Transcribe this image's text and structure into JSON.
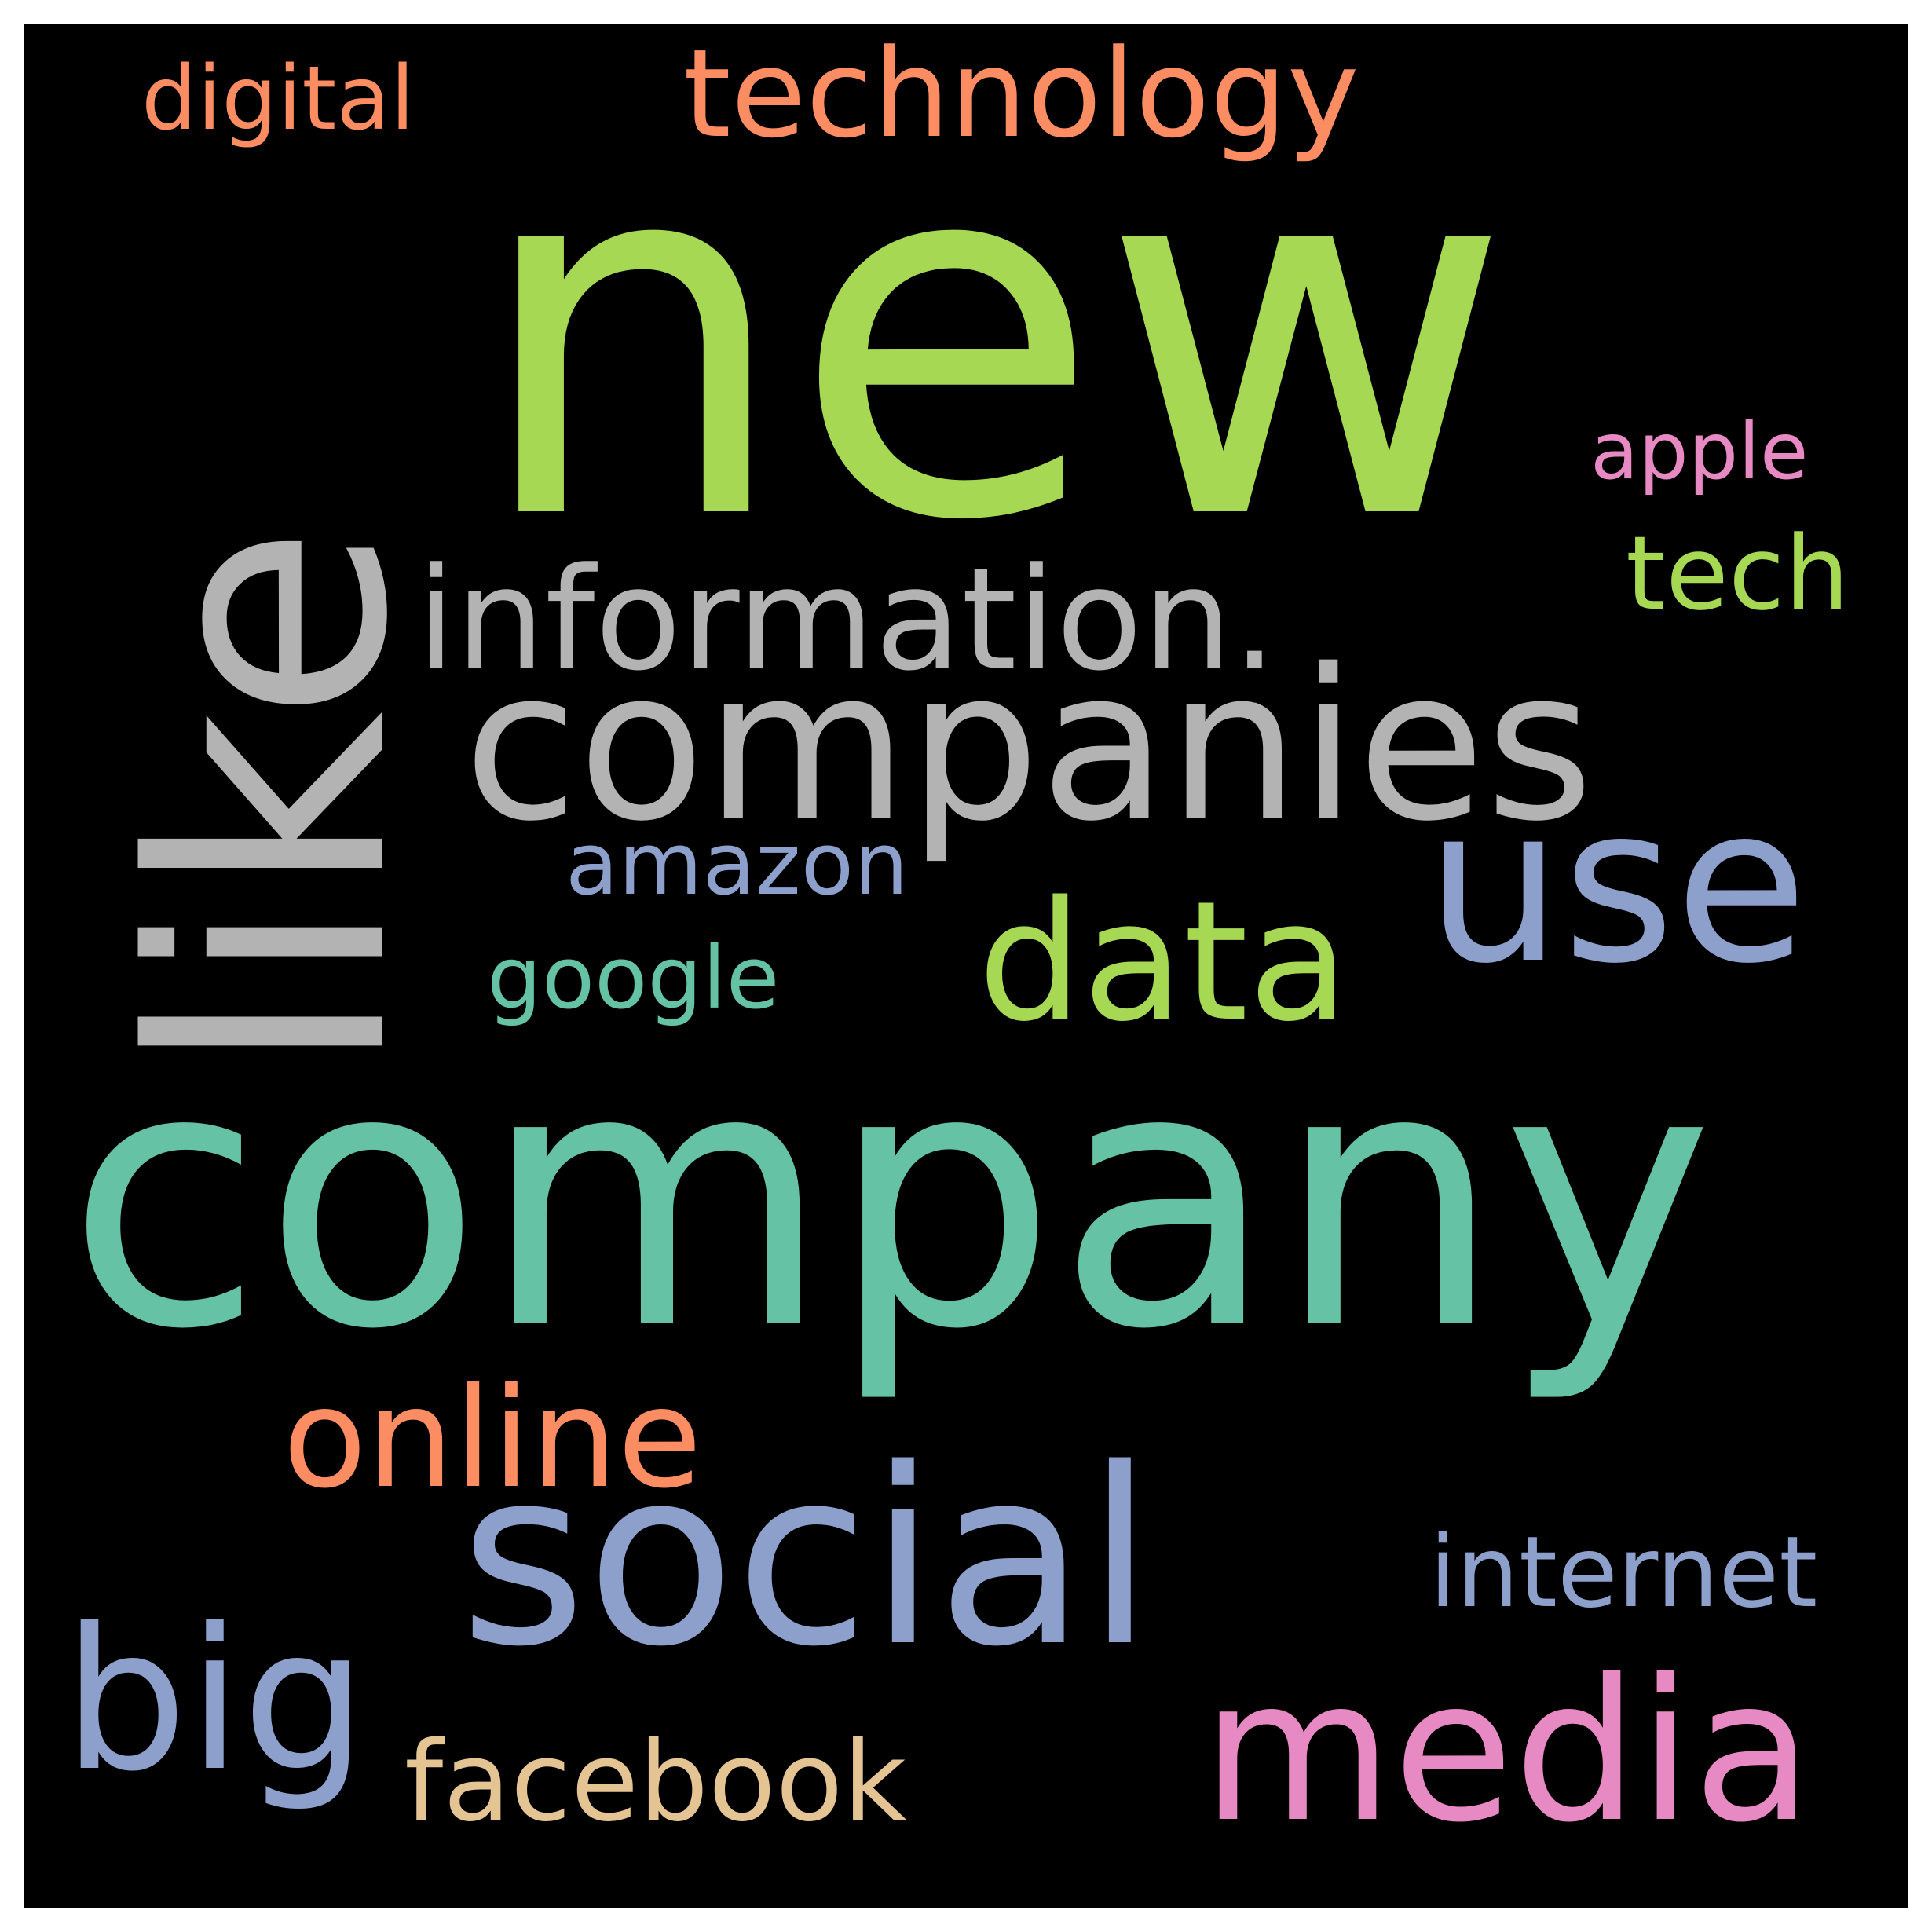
{
  "wordcloud": {
    "background_color": "#000000",
    "words": [
      {
        "key": "new",
        "text": "new",
        "color": "#a6d854",
        "orientation": "horizontal"
      },
      {
        "key": "like",
        "text": "like",
        "color": "#b3b3b3",
        "orientation": "vertical"
      },
      {
        "key": "company",
        "text": "company",
        "color": "#66c2a5",
        "orientation": "horizontal"
      },
      {
        "key": "companies",
        "text": "companies",
        "color": "#b3b3b3",
        "orientation": "horizontal"
      },
      {
        "key": "information",
        "text": "information.",
        "color": "#b3b3b3",
        "orientation": "horizontal"
      },
      {
        "key": "technology",
        "text": "technology",
        "color": "#fc8d62",
        "orientation": "horizontal"
      },
      {
        "key": "digital",
        "text": "digital",
        "color": "#fc8d62",
        "orientation": "horizontal"
      },
      {
        "key": "apple",
        "text": "apple",
        "color": "#e78ac3",
        "orientation": "horizontal"
      },
      {
        "key": "tech",
        "text": "tech",
        "color": "#a6d854",
        "orientation": "horizontal"
      },
      {
        "key": "use",
        "text": "use",
        "color": "#8da0cb",
        "orientation": "horizontal"
      },
      {
        "key": "data",
        "text": "data",
        "color": "#a6d854",
        "orientation": "horizontal"
      },
      {
        "key": "amazon",
        "text": "amazon",
        "color": "#8da0cb",
        "orientation": "horizontal"
      },
      {
        "key": "google",
        "text": "google",
        "color": "#66c2a5",
        "orientation": "horizontal"
      },
      {
        "key": "online",
        "text": "online",
        "color": "#fc8d62",
        "orientation": "horizontal"
      },
      {
        "key": "social",
        "text": "social",
        "color": "#8da0cb",
        "orientation": "horizontal"
      },
      {
        "key": "internet",
        "text": "internet",
        "color": "#8da0cb",
        "orientation": "horizontal"
      },
      {
        "key": "big",
        "text": "big",
        "color": "#8da0cb",
        "orientation": "horizontal"
      },
      {
        "key": "facebook",
        "text": "facebook",
        "color": "#e5c494",
        "orientation": "horizontal"
      },
      {
        "key": "media",
        "text": "media",
        "color": "#e78ac3",
        "orientation": "horizontal"
      }
    ]
  }
}
